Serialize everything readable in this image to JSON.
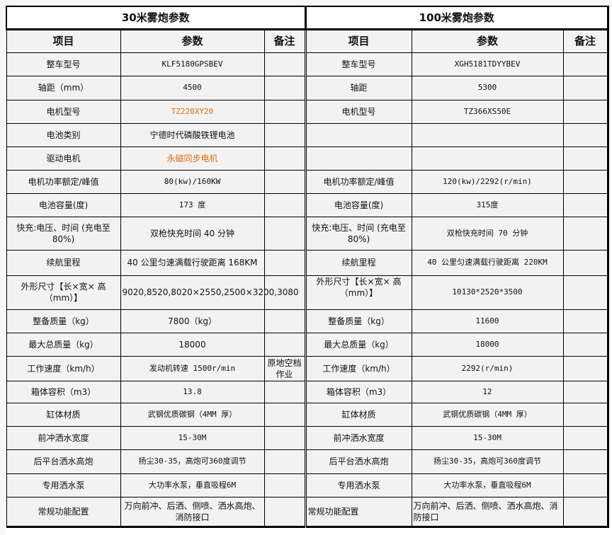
{
  "left": {
    "title": "30米雾炮参数",
    "headers": [
      "项目",
      "参数",
      "备注"
    ],
    "rows": [
      {
        "item": "整车型号",
        "param": "KLF5180GPSBEV",
        "note": ""
      },
      {
        "item": "轴距（mm）",
        "param": "4500",
        "note": ""
      },
      {
        "item": "电机型号",
        "param": "TZ220XY20",
        "note": "",
        "color": "#e46c0a"
      },
      {
        "item": "电池类别",
        "param": "宁德时代磷酸铁锂电池",
        "note": ""
      },
      {
        "item": "驱动电机",
        "param": "永磁同步电机",
        "note": "",
        "color": "#e46c0a"
      },
      {
        "item": "电机功率额定/峰值",
        "param": "80(kw)/160KW",
        "note": ""
      },
      {
        "item": "电池容量(度)",
        "param": "173 度",
        "note": ""
      },
      {
        "item": "快充:电压、时间 (充电至 80%)",
        "param": "双枪快充时间 40 分钟",
        "note": ""
      },
      {
        "item": "续航里程",
        "param": "40 公里匀速满载行驶距离 168KM",
        "note": ""
      },
      {
        "item": "外形尺寸【长×宽× 高（mm）】",
        "param": "9020,8520,8020×2550,2500×3200,3080",
        "note": ""
      },
      {
        "item": "整备质量（kg）",
        "param": "7800（kg）",
        "note": ""
      },
      {
        "item": "最大总质量（kg）",
        "param": "18000",
        "note": ""
      },
      {
        "item": "工作速度（km/h）",
        "param": "发动机转速 1500r/min",
        "note": "原地空档作业"
      },
      {
        "item": "箱体容积（m3）",
        "param": "13.8",
        "note": ""
      },
      {
        "item": "缸体材质",
        "param": "武钢优质碳钢（4MM 厚）",
        "note": ""
      },
      {
        "item": "前冲洒水宽度",
        "param": "15-30M",
        "note": ""
      },
      {
        "item": "后平台洒水高炮",
        "param": "扬尘30-35，高炮可360度调节",
        "note": ""
      },
      {
        "item": "专用洒水泵",
        "param": "大功率水泵，垂直吸程6M",
        "note": ""
      },
      {
        "item": "常规功能配置",
        "param": "万向前冲、后洒、侧喷、洒水高炮、消防接口",
        "note": ""
      }
    ]
  },
  "right": {
    "title": "100米雾炮参数",
    "headers": [
      "项目",
      "参数",
      "备注"
    ],
    "rows": [
      {
        "item": "整车型号",
        "param": "XGH5181TDYYBEV",
        "note": ""
      },
      {
        "item": "轴距",
        "param": "5300",
        "note": ""
      },
      {
        "item": "电机型号",
        "param": "TZ366XS50E",
        "note": ""
      },
      {
        "item": "",
        "param": "",
        "note": ""
      },
      {
        "item": "",
        "param": "",
        "note": ""
      },
      {
        "item": "电机功率额定/峰值",
        "param": "120(kw)/2292(r/min)",
        "note": ""
      },
      {
        "item": "电池容量(度)",
        "param": "315度",
        "note": ""
      },
      {
        "item": "快充:电压、时间 (充电至 80%)",
        "param": "双枪快充时间 70 分钟",
        "note": ""
      },
      {
        "item": "续航里程",
        "param": "40 公里匀速满载行驶距离 220KM",
        "note": ""
      },
      {
        "item": "外形尺寸【长×宽× 高（mm）】",
        "param": "10130*2520*3500",
        "note": ""
      },
      {
        "item": "整备质量（kg）",
        "param": "11600",
        "note": ""
      },
      {
        "item": "最大总质量（kg）",
        "param": "18000",
        "note": ""
      },
      {
        "item": "工作速度（km/h）",
        "param": "2292(r/min)",
        "note": ""
      },
      {
        "item": "箱体容积（m3）",
        "param": "12",
        "note": ""
      },
      {
        "item": "缸体材质",
        "param": "武钢优质碳钢（4MM 厚）",
        "note": ""
      },
      {
        "item": "前冲洒水宽度",
        "param": "15-30M",
        "note": ""
      },
      {
        "item": "后平台洒水高炮",
        "param": "扬尘30-35，高炮可360度调节",
        "note": ""
      },
      {
        "item": "专用洒水泵",
        "param": "大功率水泵，垂直吸程6M",
        "note": ""
      },
      {
        "item": "常规功能配置",
        "param": "万向前冲、后洒、侧喷、洒水高炮、消防接口",
        "note": ""
      }
    ]
  }
}
